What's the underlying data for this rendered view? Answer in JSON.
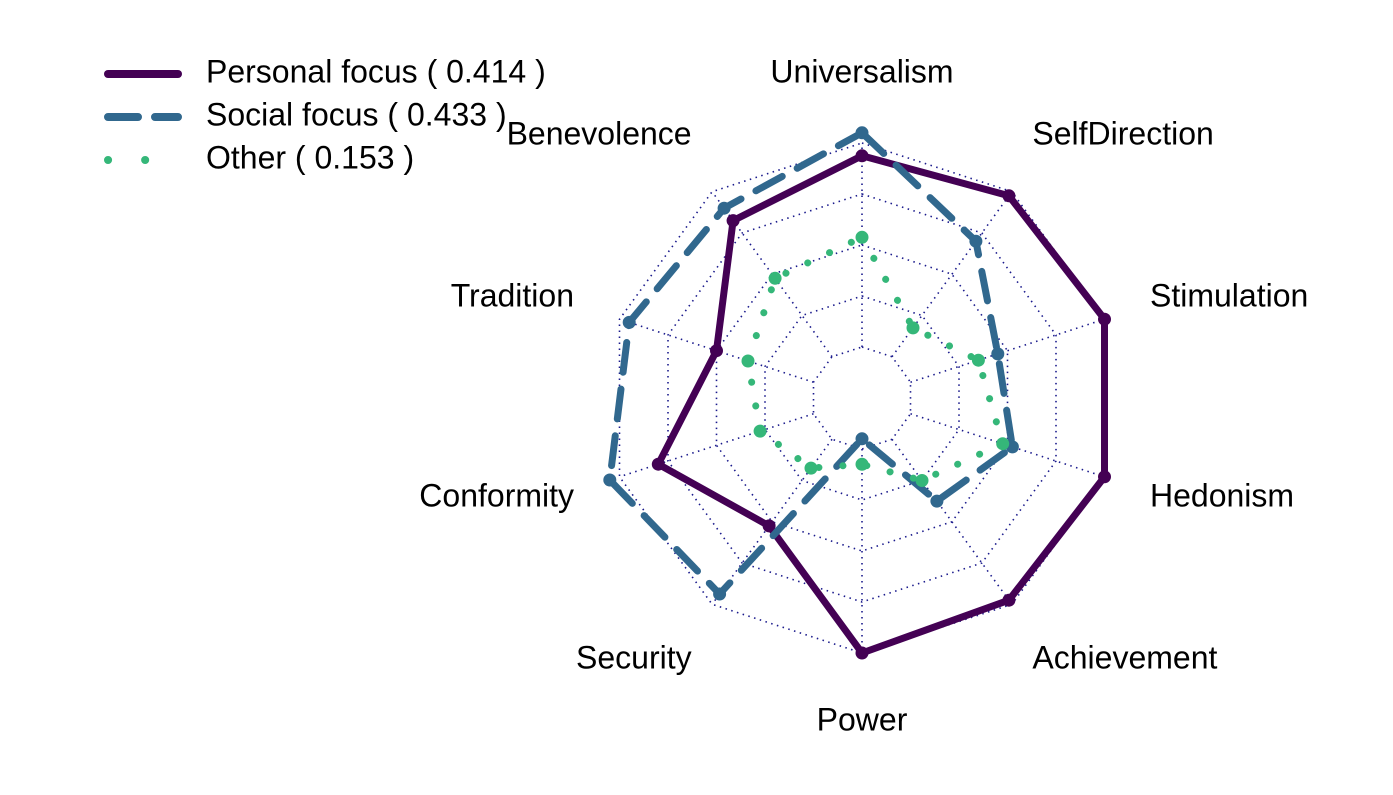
{
  "chart_data": {
    "type": "radar",
    "axes": [
      "Universalism",
      "SelfDirection",
      "Stimulation",
      "Hedonism",
      "Achievement",
      "Power",
      "Security",
      "Conformity",
      "Tradition",
      "Benevolence"
    ],
    "rmax": 1.0,
    "grid_levels": [
      0.2,
      0.4,
      0.6,
      0.8,
      1.0
    ],
    "grid_style": "dotted",
    "grid_color": "#1a1a8c",
    "legend_position": "top-left",
    "series": [
      {
        "label": "Personal focus ( 0.414 )",
        "color": "#440154",
        "line_style": "solid",
        "values": [
          0.95,
          0.98,
          1.0,
          1.0,
          0.98,
          1.0,
          0.62,
          0.84,
          0.6,
          0.86
        ]
      },
      {
        "label": "Social focus ( 0.433 )",
        "color": "#31688e",
        "line_style": "dashed",
        "values": [
          1.04,
          0.76,
          0.56,
          0.62,
          0.5,
          0.16,
          0.95,
          1.04,
          0.96,
          0.92
        ]
      },
      {
        "label": "Other ( 0.153 )",
        "color": "#35b779",
        "line_style": "dotted",
        "values": [
          0.63,
          0.34,
          0.48,
          0.58,
          0.4,
          0.26,
          0.34,
          0.42,
          0.47,
          0.58
        ]
      }
    ]
  }
}
